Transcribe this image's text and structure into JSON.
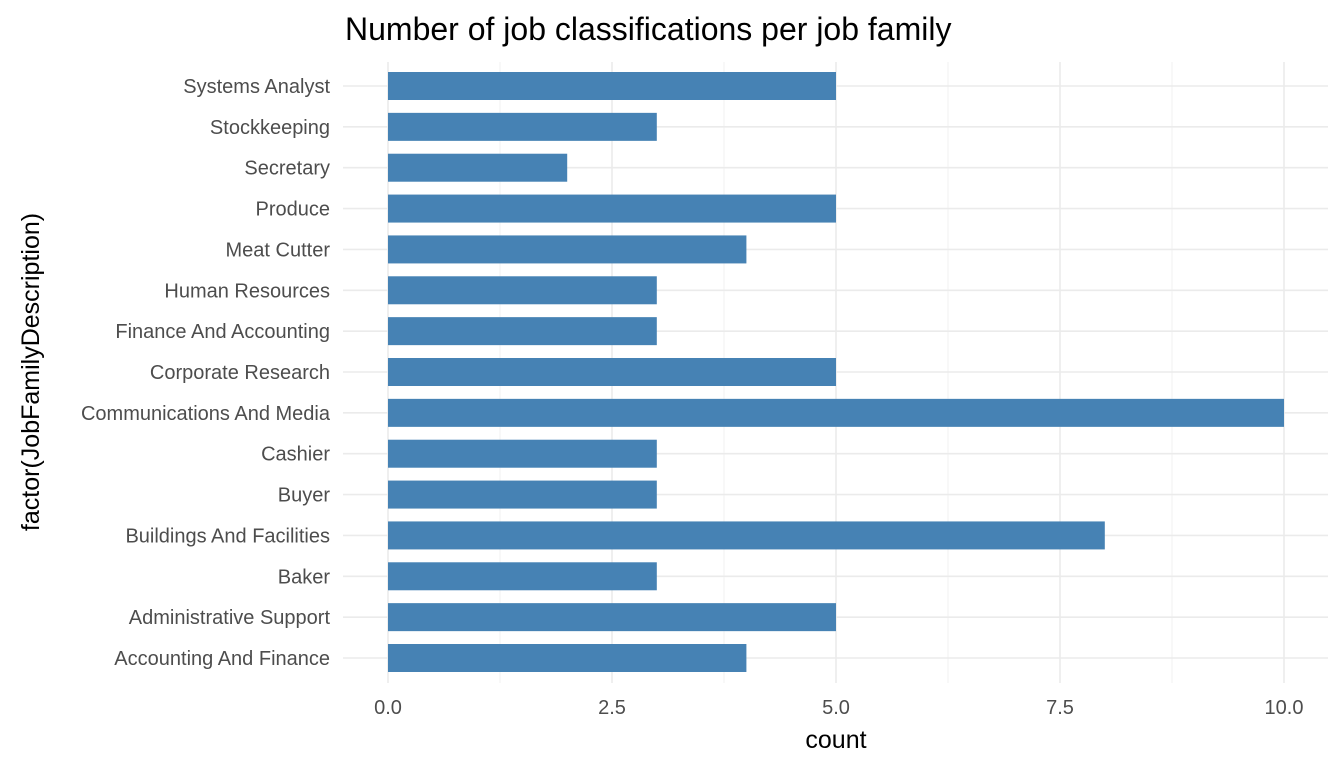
{
  "chart_data": {
    "type": "bar",
    "orientation": "horizontal",
    "title": "Number of job classifications per job family",
    "xlabel": "count",
    "ylabel": "factor(JobFamilyDescription)",
    "categories": [
      "Accounting And Finance",
      "Administrative Support",
      "Baker",
      "Buildings And Facilities",
      "Buyer",
      "Cashier",
      "Communications And Media",
      "Corporate Research",
      "Finance  And Accounting",
      "Human Resources",
      "Meat Cutter",
      "Produce",
      "Secretary",
      "Stockkeeping",
      "Systems Analyst"
    ],
    "values": [
      4,
      5,
      3,
      8,
      3,
      3,
      10,
      5,
      3,
      3,
      4,
      5,
      2,
      3,
      5
    ],
    "xlim": [
      0,
      10.3
    ],
    "x_ticks": [
      0,
      2.5,
      5,
      7.5,
      10
    ],
    "x_tick_labels": [
      "0.0",
      "2.5",
      "5.0",
      "7.5",
      "10.0"
    ],
    "grid": true,
    "legend": "none",
    "bar_color": "#4682b4"
  }
}
